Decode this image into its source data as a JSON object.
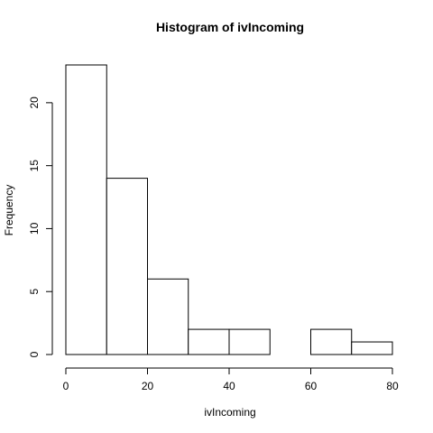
{
  "chart_data": {
    "type": "bar",
    "title": "Histogram of ivIncoming",
    "xlabel": "ivIncoming",
    "ylabel": "Frequency",
    "bins": [
      {
        "x0": 0,
        "x1": 10,
        "count": 23
      },
      {
        "x0": 10,
        "x1": 20,
        "count": 14
      },
      {
        "x0": 20,
        "x1": 30,
        "count": 6
      },
      {
        "x0": 30,
        "x1": 40,
        "count": 2
      },
      {
        "x0": 40,
        "x1": 50,
        "count": 2
      },
      {
        "x0": 50,
        "x1": 60,
        "count": 0
      },
      {
        "x0": 60,
        "x1": 70,
        "count": 2
      },
      {
        "x0": 70,
        "x1": 80,
        "count": 1
      }
    ],
    "xlim": [
      0,
      80
    ],
    "ylim": [
      0,
      23
    ],
    "xticks": [
      0,
      20,
      40,
      60,
      80
    ],
    "yticks": [
      0,
      5,
      10,
      15,
      20
    ],
    "grid": false
  }
}
